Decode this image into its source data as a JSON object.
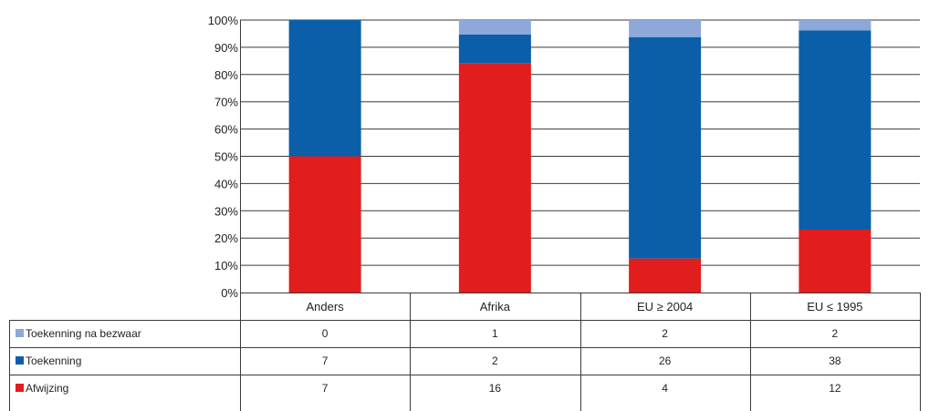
{
  "chart_data": {
    "type": "bar",
    "stacked": true,
    "percent": true,
    "categories": [
      "Anders",
      "Afrika",
      "EU ≥ 2004",
      "EU ≤ 1995"
    ],
    "series": [
      {
        "name": "Toekenning na bezwaar",
        "color": "#8ea9d9",
        "values": [
          0,
          1,
          2,
          2
        ]
      },
      {
        "name": "Toekenning",
        "color": "#0a5fa8",
        "values": [
          7,
          2,
          26,
          38
        ]
      },
      {
        "name": "Afwijzing",
        "color": "#e21d1d",
        "values": [
          7,
          16,
          4,
          12
        ]
      }
    ],
    "yticks": [
      "0%",
      "10%",
      "20%",
      "30%",
      "40%",
      "50%",
      "60%",
      "70%",
      "80%",
      "90%",
      "100%"
    ],
    "ylim": [
      0,
      100
    ],
    "grid": true,
    "legend": "data table below chart"
  }
}
